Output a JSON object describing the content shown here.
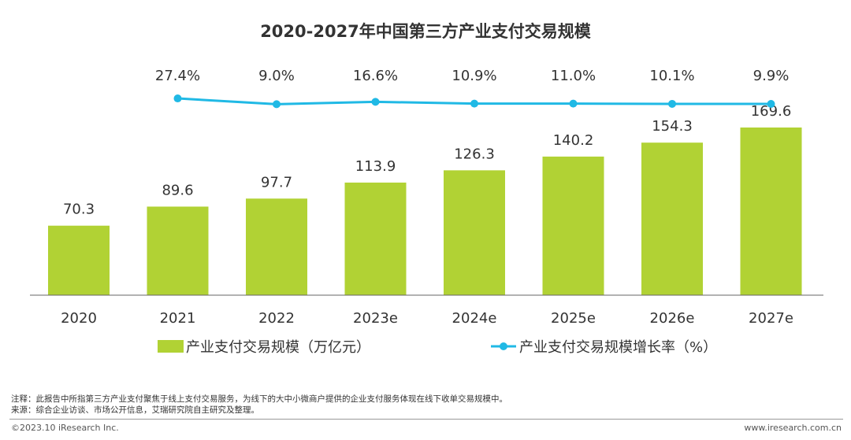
{
  "chart_data": {
    "type": "bar+line",
    "title": "2020-2027年中国第三方产业支付交易规模",
    "categories": [
      "2020",
      "2021",
      "2022",
      "2023e",
      "2024e",
      "2025e",
      "2026e",
      "2027e"
    ],
    "series": [
      {
        "name": "产业支付交易规模（万亿元）",
        "type": "bar",
        "values": [
          70.3,
          89.6,
          97.7,
          113.9,
          126.3,
          140.2,
          154.3,
          169.6
        ],
        "labels": [
          "70.3",
          "89.6",
          "97.7",
          "113.9",
          "126.3",
          "140.2",
          "154.3",
          "169.6"
        ]
      },
      {
        "name": "产业支付交易规模增长率（%）",
        "type": "line",
        "values": [
          null,
          27.4,
          9.0,
          16.6,
          10.9,
          11.0,
          10.1,
          9.9
        ],
        "labels": [
          "",
          "27.4%",
          "9.0%",
          "16.6%",
          "10.9%",
          "11.0%",
          "10.1%",
          "9.9%"
        ]
      }
    ],
    "ylim": [
      0,
      180
    ],
    "grid": false,
    "legend_position": "bottom",
    "colors": {
      "bar": "#b1d234",
      "line": "#20b9e5"
    }
  },
  "notes": {
    "note": "注释：此报告中所指第三方产业支付聚焦于线上支付交易服务，为线下的大中小微商户提供的企业支付服务体现在线下收单交易规模中。",
    "source": "来源：综合企业访谈、市场公开信息，艾瑞研究院自主研究及整理。"
  },
  "footer": {
    "copyright": "©2023.10 iResearch Inc.",
    "website": "www.iresearch.com.cn"
  }
}
